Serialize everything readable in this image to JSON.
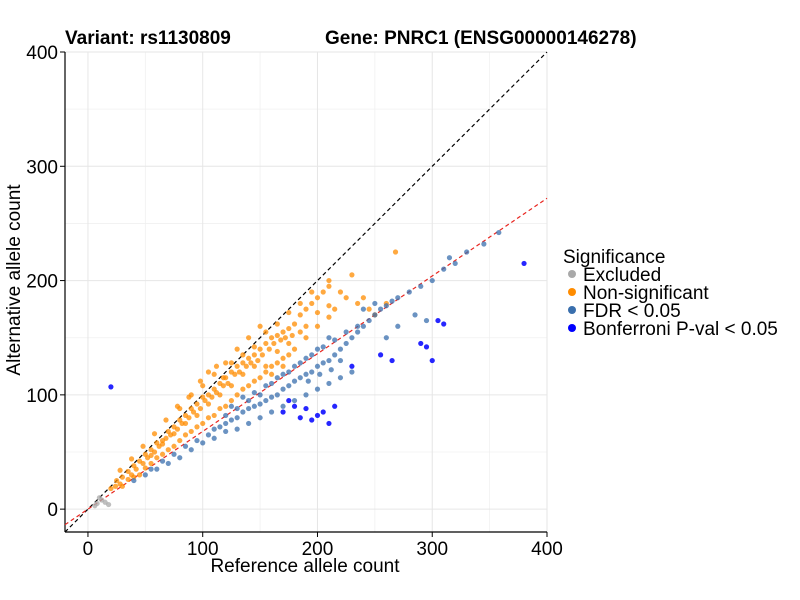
{
  "chart_data": {
    "type": "scatter",
    "title_variant": "Variant: rs1130809",
    "title_gene": "Gene: PNRC1 (ENSG00000146278)",
    "xlabel": "Reference allele count",
    "ylabel": "Alternative allele count",
    "xlim": [
      -20,
      400
    ],
    "ylim": [
      -20,
      400
    ],
    "xticks": [
      0,
      100,
      200,
      300,
      400
    ],
    "yticks": [
      0,
      100,
      200,
      300,
      400
    ],
    "grid": true,
    "reference_lines": [
      {
        "name": "identity",
        "slope": 1,
        "intercept": 0,
        "color": "#000000",
        "style": "dashed"
      },
      {
        "name": "fit",
        "slope": 0.68,
        "intercept": 0,
        "color": "#e8251f",
        "style": "dashed"
      }
    ],
    "legend": {
      "title": "Significance",
      "position": "right",
      "entries": [
        {
          "label": "Excluded",
          "color": "#a9a9a9"
        },
        {
          "label": "Non-significant",
          "color": "#ff8c00"
        },
        {
          "label": "FDR < 0.05",
          "color": "#3a6fad"
        },
        {
          "label": "Bonferroni P-val < 0.05",
          "color": "#0000ff"
        }
      ]
    },
    "series": [
      {
        "name": "Excluded",
        "color": "#a9a9a9",
        "points": [
          [
            8,
            5
          ],
          [
            12,
            8
          ],
          [
            15,
            6
          ],
          [
            18,
            4
          ],
          [
            10,
            10
          ],
          [
            6,
            3
          ]
        ]
      },
      {
        "name": "Non-significant",
        "color": "#ff8c00",
        "points": [
          [
            20,
            18
          ],
          [
            25,
            25
          ],
          [
            30,
            28
          ],
          [
            28,
            22
          ],
          [
            35,
            33
          ],
          [
            38,
            30
          ],
          [
            40,
            38
          ],
          [
            42,
            35
          ],
          [
            45,
            42
          ],
          [
            48,
            40
          ],
          [
            50,
            48
          ],
          [
            52,
            45
          ],
          [
            55,
            52
          ],
          [
            58,
            50
          ],
          [
            60,
            58
          ],
          [
            62,
            55
          ],
          [
            65,
            60
          ],
          [
            68,
            62
          ],
          [
            70,
            68
          ],
          [
            72,
            65
          ],
          [
            75,
            72
          ],
          [
            78,
            70
          ],
          [
            80,
            78
          ],
          [
            82,
            75
          ],
          [
            85,
            82
          ],
          [
            88,
            80
          ],
          [
            90,
            88
          ],
          [
            92,
            85
          ],
          [
            95,
            92
          ],
          [
            98,
            88
          ],
          [
            100,
            98
          ],
          [
            102,
            95
          ],
          [
            105,
            100
          ],
          [
            108,
            98
          ],
          [
            110,
            105
          ],
          [
            112,
            102
          ],
          [
            115,
            110
          ],
          [
            118,
            108
          ],
          [
            120,
            115
          ],
          [
            122,
            110
          ],
          [
            125,
            120
          ],
          [
            128,
            118
          ],
          [
            130,
            125
          ],
          [
            132,
            120
          ],
          [
            135,
            128
          ],
          [
            138,
            125
          ],
          [
            140,
            132
          ],
          [
            142,
            128
          ],
          [
            145,
            135
          ],
          [
            148,
            130
          ],
          [
            150,
            140
          ],
          [
            152,
            135
          ],
          [
            155,
            145
          ],
          [
            158,
            140
          ],
          [
            160,
            150
          ],
          [
            162,
            145
          ],
          [
            165,
            152
          ],
          [
            168,
            148
          ],
          [
            170,
            155
          ],
          [
            172,
            150
          ],
          [
            175,
            158
          ],
          [
            178,
            152
          ],
          [
            180,
            162
          ],
          [
            185,
            170
          ],
          [
            190,
            175
          ],
          [
            195,
            180
          ],
          [
            200,
            185
          ],
          [
            205,
            190
          ],
          [
            210,
            195
          ],
          [
            220,
            190
          ],
          [
            230,
            205
          ],
          [
            235,
            180
          ],
          [
            240,
            185
          ],
          [
            245,
            175
          ],
          [
            250,
            170
          ],
          [
            260,
            180
          ],
          [
            268,
            225
          ],
          [
            45,
            30
          ],
          [
            55,
            40
          ],
          [
            65,
            48
          ],
          [
            75,
            55
          ],
          [
            85,
            65
          ],
          [
            95,
            72
          ],
          [
            105,
            80
          ],
          [
            115,
            88
          ],
          [
            125,
            95
          ],
          [
            135,
            105
          ],
          [
            145,
            112
          ],
          [
            155,
            120
          ],
          [
            165,
            128
          ],
          [
            175,
            135
          ],
          [
            60,
            45
          ],
          [
            70,
            52
          ],
          [
            80,
            60
          ],
          [
            90,
            68
          ],
          [
            100,
            75
          ],
          [
            110,
            82
          ],
          [
            120,
            90
          ],
          [
            130,
            100
          ],
          [
            140,
            108
          ],
          [
            150,
            115
          ],
          [
            160,
            125
          ],
          [
            170,
            132
          ],
          [
            180,
            140
          ],
          [
            190,
            150
          ],
          [
            200,
            160
          ],
          [
            40,
            28
          ],
          [
            50,
            36
          ],
          [
            30,
            20
          ],
          [
            35,
            26
          ],
          [
            190,
            160
          ],
          [
            200,
            172
          ],
          [
            210,
            178
          ],
          [
            150,
            160
          ],
          [
            140,
            150
          ],
          [
            130,
            140
          ],
          [
            120,
            128
          ],
          [
            110,
            118
          ],
          [
            100,
            108
          ],
          [
            90,
            100
          ],
          [
            80,
            88
          ],
          [
            155,
            125
          ],
          [
            165,
            138
          ],
          [
            175,
            145
          ],
          [
            185,
            155
          ],
          [
            160,
            118
          ],
          [
            170,
            125
          ],
          [
            105,
            92
          ],
          [
            115,
            100
          ],
          [
            125,
            108
          ],
          [
            135,
            118
          ],
          [
            145,
            125
          ],
          [
            95,
            82
          ],
          [
            85,
            75
          ],
          [
            75,
            66
          ],
          [
            65,
            57
          ],
          [
            55,
            47
          ],
          [
            210,
            168
          ],
          [
            215,
            175
          ],
          [
            225,
            185
          ],
          [
            105,
            120
          ],
          [
            112,
            125
          ],
          [
            98,
            112
          ],
          [
            88,
            98
          ],
          [
            78,
            90
          ],
          [
            68,
            78
          ],
          [
            58,
            66
          ],
          [
            48,
            55
          ],
          [
            38,
            44
          ],
          [
            28,
            34
          ],
          [
            24,
            20
          ],
          [
            210,
            200
          ],
          [
            195,
            190
          ],
          [
            185,
            180
          ],
          [
            175,
            172
          ],
          [
            165,
            162
          ],
          [
            155,
            155
          ],
          [
            145,
            142
          ],
          [
            135,
            135
          ],
          [
            125,
            128
          ],
          [
            118,
            115
          ]
        ]
      },
      {
        "name": "FDR < 0.05",
        "color": "#3a6fad",
        "points": [
          [
            40,
            25
          ],
          [
            55,
            35
          ],
          [
            65,
            42
          ],
          [
            75,
            48
          ],
          [
            85,
            55
          ],
          [
            95,
            60
          ],
          [
            105,
            65
          ],
          [
            110,
            70
          ],
          [
            115,
            72
          ],
          [
            120,
            75
          ],
          [
            125,
            78
          ],
          [
            130,
            80
          ],
          [
            135,
            85
          ],
          [
            140,
            88
          ],
          [
            145,
            90
          ],
          [
            150,
            92
          ],
          [
            155,
            95
          ],
          [
            160,
            98
          ],
          [
            165,
            100
          ],
          [
            170,
            105
          ],
          [
            175,
            108
          ],
          [
            180,
            112
          ],
          [
            185,
            115
          ],
          [
            190,
            118
          ],
          [
            195,
            120
          ],
          [
            200,
            125
          ],
          [
            205,
            128
          ],
          [
            210,
            130
          ],
          [
            215,
            135
          ],
          [
            220,
            140
          ],
          [
            225,
            145
          ],
          [
            230,
            150
          ],
          [
            235,
            155
          ],
          [
            240,
            160
          ],
          [
            245,
            165
          ],
          [
            250,
            170
          ],
          [
            255,
            175
          ],
          [
            260,
            178
          ],
          [
            265,
            182
          ],
          [
            270,
            185
          ],
          [
            280,
            190
          ],
          [
            290,
            195
          ],
          [
            300,
            200
          ],
          [
            310,
            210
          ],
          [
            315,
            220
          ],
          [
            320,
            215
          ],
          [
            330,
            225
          ],
          [
            345,
            232
          ],
          [
            358,
            242
          ],
          [
            130,
            70
          ],
          [
            140,
            75
          ],
          [
            150,
            80
          ],
          [
            160,
            85
          ],
          [
            170,
            90
          ],
          [
            180,
            95
          ],
          [
            190,
            100
          ],
          [
            200,
            105
          ],
          [
            210,
            110
          ],
          [
            220,
            115
          ],
          [
            230,
            120
          ],
          [
            120,
            68
          ],
          [
            110,
            62
          ],
          [
            100,
            58
          ],
          [
            90,
            52
          ],
          [
            80,
            45
          ],
          [
            70,
            40
          ],
          [
            60,
            35
          ],
          [
            50,
            30
          ],
          [
            125,
            90
          ],
          [
            135,
            98
          ],
          [
            145,
            102
          ],
          [
            155,
            108
          ],
          [
            165,
            115
          ],
          [
            175,
            120
          ],
          [
            185,
            128
          ],
          [
            195,
            135
          ],
          [
            205,
            142
          ],
          [
            215,
            148
          ],
          [
            225,
            155
          ],
          [
            235,
            160
          ],
          [
            150,
            100
          ],
          [
            160,
            110
          ],
          [
            170,
            118
          ],
          [
            180,
            125
          ],
          [
            190,
            132
          ],
          [
            200,
            140
          ],
          [
            210,
            150
          ],
          [
            140,
            95
          ],
          [
            130,
            88
          ],
          [
            120,
            82
          ],
          [
            240,
            175
          ],
          [
            250,
            180
          ],
          [
            260,
            150
          ],
          [
            270,
            160
          ],
          [
            285,
            170
          ],
          [
            295,
            165
          ],
          [
            220,
            130
          ],
          [
            212,
            122
          ],
          [
            202,
            118
          ],
          [
            192,
            112
          ]
        ]
      },
      {
        "name": "Bonferroni P-val < 0.05",
        "color": "#0000ff",
        "points": [
          [
            20,
            107
          ],
          [
            170,
            85
          ],
          [
            180,
            90
          ],
          [
            185,
            80
          ],
          [
            190,
            88
          ],
          [
            195,
            78
          ],
          [
            200,
            82
          ],
          [
            205,
            85
          ],
          [
            210,
            75
          ],
          [
            215,
            90
          ],
          [
            230,
            125
          ],
          [
            255,
            135
          ],
          [
            265,
            130
          ],
          [
            290,
            145
          ],
          [
            295,
            142
          ],
          [
            305,
            165
          ],
          [
            310,
            162
          ],
          [
            300,
            130
          ],
          [
            380,
            215
          ],
          [
            175,
            95
          ]
        ]
      }
    ]
  }
}
